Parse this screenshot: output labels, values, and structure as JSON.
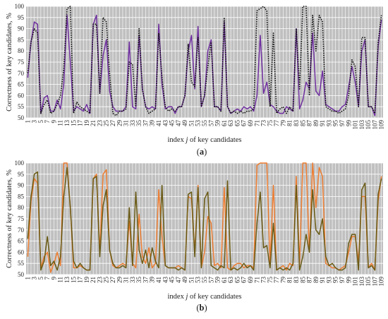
{
  "chart_data": [
    {
      "type": "line",
      "panel_label": "(a)",
      "ylabel": "Correctness of key candidates, %",
      "xlabel": "index j of key candidates",
      "xlabel_parts": [
        "index ",
        "j",
        " of key candidates"
      ],
      "ylim": [
        50,
        100
      ],
      "yticks": [
        50,
        55,
        60,
        65,
        70,
        75,
        80,
        85,
        90,
        95,
        100
      ],
      "xticks": [
        1,
        3,
        5,
        7,
        9,
        11,
        13,
        15,
        17,
        19,
        21,
        23,
        25,
        27,
        29,
        31,
        33,
        35,
        37,
        39,
        41,
        43,
        45,
        47,
        49,
        51,
        53,
        55,
        57,
        59,
        61,
        63,
        65,
        67,
        69,
        71,
        73,
        75,
        77,
        79,
        81,
        83,
        85,
        87,
        89,
        91,
        93,
        95,
        97,
        99,
        101,
        103,
        105,
        107,
        109
      ],
      "grid": true,
      "background": "#c0c0c0",
      "series": [
        {
          "name": "",
          "color": "#7030a0",
          "style": "solid",
          "values": [
            68,
            84,
            93,
            92,
            52,
            59,
            60,
            53,
            53,
            58,
            54,
            65,
            96,
            75,
            53,
            55,
            54,
            53,
            56,
            52,
            92,
            96,
            61,
            78,
            85,
            62,
            55,
            53,
            53,
            53,
            55,
            84,
            55,
            54,
            87,
            63,
            55,
            54,
            55,
            54,
            92,
            65,
            54,
            55,
            55,
            52,
            55,
            55,
            60,
            80,
            87,
            63,
            91,
            55,
            60,
            80,
            85,
            55,
            55,
            53,
            93,
            55,
            52,
            53,
            54,
            53,
            55,
            54,
            55,
            53,
            60,
            87,
            61,
            66,
            56,
            55,
            53,
            52,
            52,
            55,
            54,
            53,
            90,
            54,
            58,
            66,
            63,
            88,
            62,
            60,
            71,
            56,
            55,
            54,
            53,
            53,
            55,
            56,
            64,
            73,
            66,
            55,
            80,
            85,
            55,
            55,
            51,
            82,
            94
          ]
        },
        {
          "name": "",
          "color": "#111111",
          "style": "dotted",
          "values": [
            70,
            84,
            90,
            88,
            52,
            56,
            58,
            52,
            53,
            56,
            60,
            72,
            99,
            100,
            52,
            57,
            55,
            54,
            53,
            52,
            92,
            92,
            61,
            95,
            93,
            70,
            52,
            51,
            53,
            53,
            54,
            75,
            74,
            55,
            90,
            63,
            55,
            52,
            53,
            54,
            88,
            68,
            55,
            53,
            54,
            53,
            55,
            55,
            60,
            83,
            66,
            64,
            86,
            55,
            60,
            73,
            84,
            55,
            55,
            53,
            95,
            55,
            52,
            53,
            52,
            53,
            52,
            53,
            53,
            54,
            98,
            99,
            100,
            98,
            55,
            88,
            52,
            54,
            55,
            52,
            55,
            53,
            90,
            63,
            100,
            100,
            60,
            96,
            80,
            96,
            93,
            55,
            54,
            53,
            53,
            52,
            53,
            54,
            60,
            76,
            73,
            55,
            86,
            86,
            55,
            55,
            52,
            84,
            96
          ]
        }
      ]
    },
    {
      "type": "line",
      "panel_label": "(b)",
      "ylabel": "Correctness of key candidates, %",
      "xlabel": "index j of key candidates",
      "xlabel_parts": [
        "index ",
        "j",
        " of key candidates"
      ],
      "ylim": [
        50,
        100
      ],
      "yticks": [
        50,
        55,
        60,
        65,
        70,
        75,
        80,
        85,
        90,
        95,
        100
      ],
      "xticks": [
        1,
        3,
        5,
        7,
        9,
        11,
        13,
        15,
        17,
        19,
        21,
        23,
        25,
        27,
        29,
        31,
        33,
        35,
        37,
        39,
        41,
        43,
        45,
        47,
        49,
        51,
        53,
        55,
        57,
        59,
        61,
        63,
        65,
        67,
        69,
        71,
        73,
        75,
        77,
        79,
        81,
        83,
        85,
        87,
        89,
        91,
        93,
        95,
        97,
        99,
        101,
        103,
        105,
        107,
        109
      ],
      "grid": true,
      "background": "#c0c0c0",
      "series": [
        {
          "name": "",
          "color": "#ed7d31",
          "style": "solid",
          "values": [
            58,
            83,
            93,
            91,
            53,
            58,
            60,
            51,
            55,
            60,
            54,
            100,
            100,
            80,
            53,
            53,
            54,
            53,
            52,
            52,
            93,
            95,
            60,
            95,
            97,
            61,
            54,
            53,
            54,
            55,
            54,
            74,
            55,
            53,
            77,
            58,
            55,
            62,
            53,
            55,
            88,
            67,
            54,
            53,
            53,
            53,
            54,
            53,
            52,
            85,
            84,
            60,
            90,
            53,
            60,
            76,
            73,
            54,
            55,
            53,
            89,
            53,
            52,
            54,
            55,
            55,
            53,
            54,
            54,
            53,
            99,
            100,
            100,
            100,
            55,
            90,
            52,
            53,
            54,
            52,
            55,
            54,
            94,
            55,
            100,
            100,
            60,
            100,
            80,
            98,
            94,
            55,
            54,
            53,
            53,
            52,
            53,
            54,
            60,
            67,
            67,
            56,
            85,
            85,
            53,
            55,
            52,
            83,
            94
          ]
        },
        {
          "name": "",
          "color": "#6a5a14",
          "style": "solid",
          "values": [
            66,
            85,
            95,
            96,
            52,
            56,
            67,
            54,
            56,
            52,
            58,
            85,
            98,
            80,
            56,
            53,
            55,
            53,
            52,
            52,
            93,
            94,
            58,
            81,
            88,
            61,
            55,
            53,
            53,
            54,
            53,
            80,
            54,
            87,
            61,
            55,
            61,
            53,
            62,
            56,
            53,
            90,
            54,
            53,
            53,
            53,
            52,
            53,
            52,
            86,
            87,
            58,
            89,
            53,
            84,
            87,
            54,
            53,
            52,
            54,
            53,
            92,
            52,
            53,
            52,
            53,
            55,
            53,
            54,
            52,
            73,
            87,
            62,
            63,
            53,
            73,
            52,
            53,
            52,
            53,
            52,
            55,
            90,
            52,
            58,
            68,
            60,
            88,
            70,
            68,
            75,
            58,
            54,
            55,
            53,
            52,
            52,
            53,
            64,
            68,
            68,
            52,
            88,
            91,
            53,
            54,
            52,
            86,
            93
          ]
        }
      ]
    }
  ]
}
